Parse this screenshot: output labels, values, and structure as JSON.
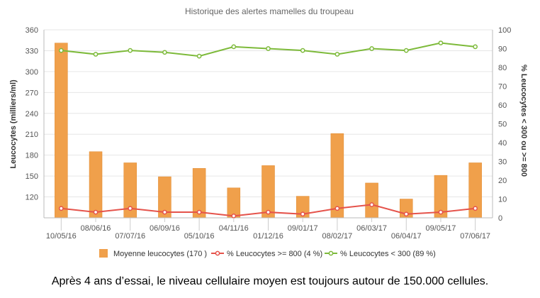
{
  "chart_data": {
    "type": "bar",
    "title": "Historique des alertes mamelles du troupeau",
    "ylabel": "Leucocytes (milliers/ml)",
    "y2label": "% Leucocytes < 300 ou >= 800",
    "ylim": [
      90,
      360
    ],
    "y_ticks": [
      120,
      150,
      180,
      210,
      240,
      270,
      300,
      330,
      360
    ],
    "y2lim": [
      0,
      100
    ],
    "y2_ticks": [
      0,
      10,
      20,
      30,
      40,
      50,
      60,
      70,
      80,
      90,
      100
    ],
    "grid": true,
    "legend_position": "bottom",
    "x_tick_labels": [
      "10/05/16",
      "08/06/16",
      "07/07/16",
      "06/09/16",
      "05/10/16",
      "04/11/16",
      "01/12/16",
      "09/01/17",
      "08/02/17",
      "06/03/17",
      "06/04/17",
      "09/05/17",
      "07/06/17"
    ],
    "series": [
      {
        "name": "Moyenne leucocytes (170 )",
        "type": "bar",
        "axis": "left",
        "color": "#f0a04b",
        "values": [
          341,
          185,
          169,
          149,
          161,
          133,
          165,
          121,
          211,
          140,
          117,
          151,
          169
        ]
      },
      {
        "name": "% Leucocytes >= 800 (4 %)",
        "type": "line",
        "axis": "right",
        "color": "#e5534b",
        "values": [
          5,
          3,
          5,
          3,
          3,
          1,
          3,
          2,
          5,
          7,
          2,
          3,
          5
        ]
      },
      {
        "name": "% Leucocytes < 300 (89 %)",
        "type": "line",
        "axis": "right",
        "color": "#7dba3a",
        "values": [
          89,
          87,
          89,
          88,
          86,
          91,
          90,
          89,
          87,
          90,
          89,
          93,
          91
        ]
      }
    ]
  },
  "caption": "Après 4 ans d’essai, le niveau cellulaire moyen est toujours autour de 150.000 cellules."
}
